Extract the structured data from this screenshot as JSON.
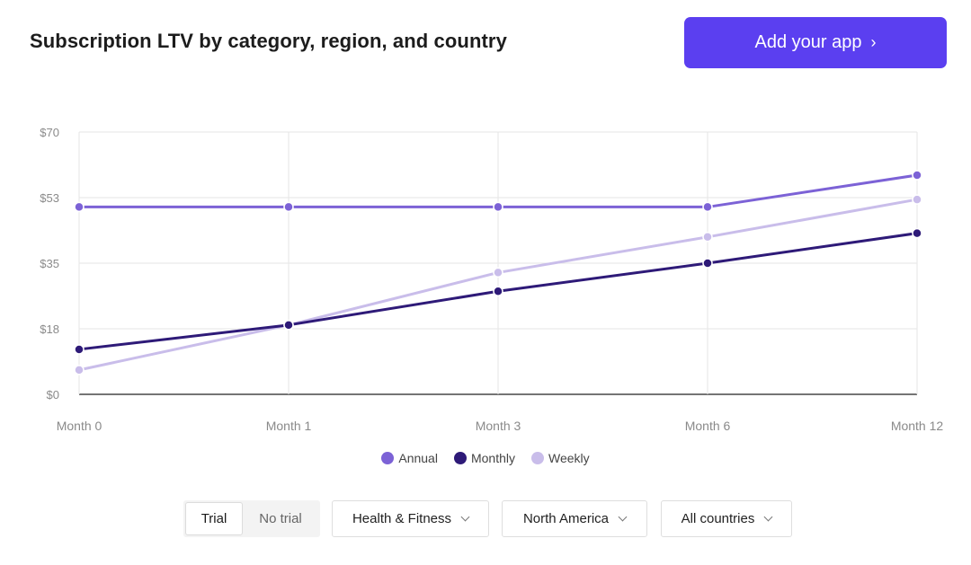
{
  "header": {
    "title": "Subscription LTV by category, region, and country",
    "cta_label": "Add your app",
    "cta_icon": "chevron-right-icon"
  },
  "chart_data": {
    "type": "line",
    "title": "",
    "xlabel": "",
    "ylabel": "",
    "categories": [
      "Month 0",
      "Month 1",
      "Month 3",
      "Month 6",
      "Month 12"
    ],
    "y_ticks": [
      "$0",
      "$18",
      "$35",
      "$53",
      "$70"
    ],
    "y_tick_values": [
      0,
      17.5,
      35,
      52.5,
      70
    ],
    "ylim": [
      0,
      70
    ],
    "grid": true,
    "legend_position": "bottom",
    "series": [
      {
        "name": "Annual",
        "color": "#7c62d6",
        "values": [
          50,
          50,
          50,
          50,
          58.5
        ]
      },
      {
        "name": "Monthly",
        "color": "#2e1a78",
        "values": [
          12,
          18.5,
          27.5,
          35,
          43
        ]
      },
      {
        "name": "Weekly",
        "color": "#c9bdea",
        "values": [
          6.5,
          18.5,
          32.5,
          42,
          52
        ]
      }
    ]
  },
  "controls": {
    "trial_options": [
      "Trial",
      "No trial"
    ],
    "trial_selected": "Trial",
    "category": "Health & Fitness",
    "region": "North America",
    "country": "All countries"
  }
}
